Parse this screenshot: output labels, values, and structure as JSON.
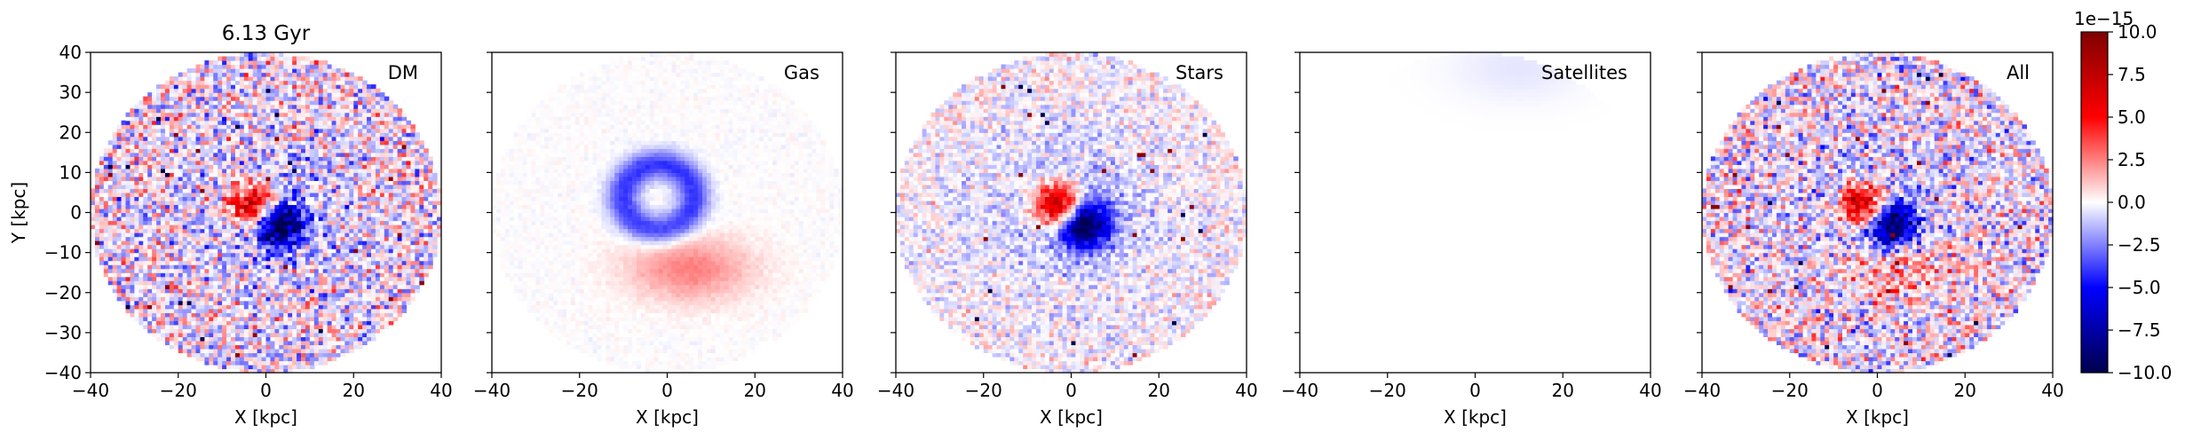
{
  "time_label": "6.13 Gyr",
  "colorbar": {
    "offset_label": "1e−15",
    "ticks": [
      "10.0",
      "7.5",
      "5.0",
      "2.5",
      "0.0",
      "−2.5",
      "−5.0",
      "−7.5",
      "−10.0"
    ],
    "range": [
      -10.0,
      10.0
    ],
    "colormap": "seismic",
    "colors": {
      "min": "#00004c",
      "low": "#0000ff",
      "mid": "#ffffff",
      "high": "#ff0000",
      "max": "#800000"
    }
  },
  "chart_data": [
    {
      "type": "heatmap",
      "panel_label": "DM",
      "title": "6.13 Gyr",
      "xlabel": "X [kpc]",
      "ylabel": "Y [kpc]",
      "xlim": [
        -40,
        40
      ],
      "ylim": [
        -40,
        40
      ],
      "xticks": [
        "−40",
        "−20",
        "0",
        "20",
        "40"
      ],
      "yticks": [
        "40",
        "30",
        "20",
        "10",
        "0",
        "−10",
        "−20",
        "−30",
        "−40"
      ],
      "features": {
        "disk_radius_kpc": 40,
        "central_dipole": true,
        "noise": "high"
      }
    },
    {
      "type": "heatmap",
      "panel_label": "Gas",
      "xlabel": "X [kpc]",
      "xlim": [
        -40,
        40
      ],
      "ylim": [
        -40,
        40
      ],
      "xticks": [
        "−40",
        "−20",
        "0",
        "20",
        "40"
      ],
      "features": {
        "blue_ring_kpc": 8,
        "red_lower_lobe": true,
        "noise": "low"
      }
    },
    {
      "type": "heatmap",
      "panel_label": "Stars",
      "xlabel": "X [kpc]",
      "xlim": [
        -40,
        40
      ],
      "ylim": [
        -40,
        40
      ],
      "xticks": [
        "−40",
        "−20",
        "0",
        "20",
        "40"
      ],
      "features": {
        "central_dipole": true,
        "noise": "medium"
      }
    },
    {
      "type": "heatmap",
      "panel_label": "Satellites",
      "xlabel": "X [kpc]",
      "xlim": [
        -40,
        40
      ],
      "ylim": [
        -40,
        40
      ],
      "xticks": [
        "−40",
        "−20",
        "0",
        "20",
        "40"
      ],
      "features": {
        "faint_blue_top": true,
        "noise": "none"
      }
    },
    {
      "type": "heatmap",
      "panel_label": "All",
      "xlabel": "X [kpc]",
      "xlim": [
        -40,
        40
      ],
      "ylim": [
        -40,
        40
      ],
      "xticks": [
        "−40",
        "−20",
        "0",
        "20",
        "40"
      ],
      "features": {
        "central_dipole": true,
        "red_lower_lobe": true,
        "noise": "high"
      }
    }
  ]
}
